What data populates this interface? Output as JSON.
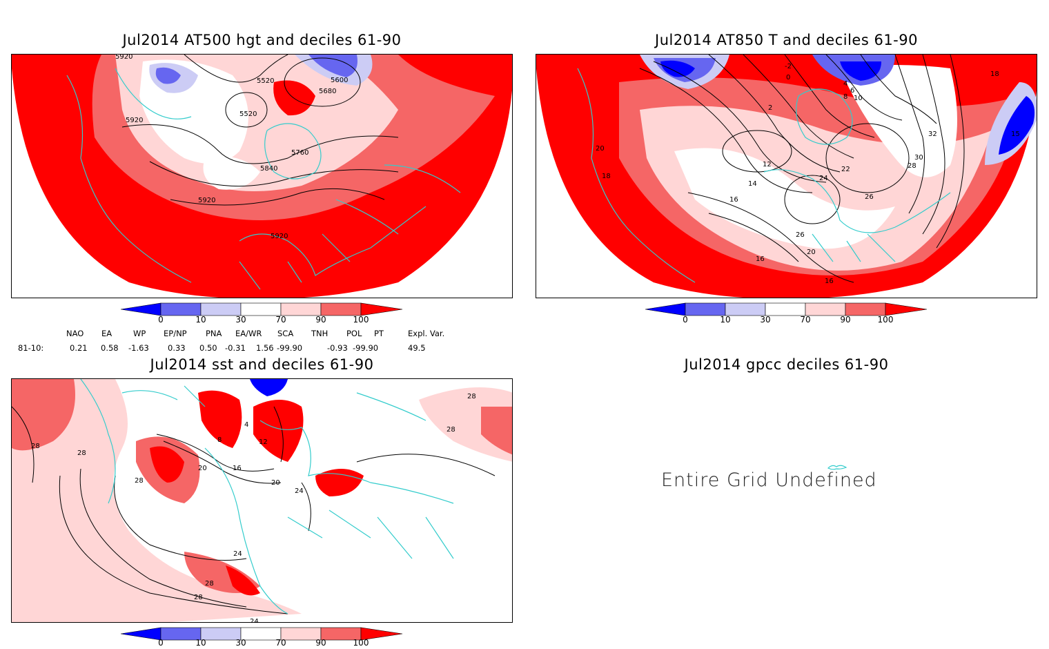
{
  "panels": {
    "p1": {
      "title": "Jul2014 AT500 hgt and deciles 61-90",
      "contour_labels": [
        "5520",
        "5520",
        "5600",
        "5680",
        "5760",
        "5840",
        "5920",
        "5920",
        "5920",
        "5920"
      ]
    },
    "p2": {
      "title": "Jul2014 AT850 T and deciles 61-90",
      "contour_labels": [
        "-2",
        "0",
        "2",
        "4",
        "6",
        "8",
        "10",
        "12",
        "14",
        "16",
        "16",
        "16",
        "18",
        "18",
        "20",
        "20",
        "22",
        "24",
        "26",
        "26",
        "28",
        "30",
        "32",
        "15"
      ]
    },
    "p3": {
      "title": "Jul2014 sst and deciles 61-90",
      "contour_labels": [
        "4",
        "8",
        "12",
        "16",
        "20",
        "20",
        "24",
        "24",
        "24",
        "28",
        "28",
        "28",
        "28",
        "28",
        "28",
        "28"
      ]
    },
    "p4": {
      "title": "Jul2014 gpcc deciles 61-90",
      "message": "Entire Grid Undefined"
    }
  },
  "colorbar": {
    "ticks": [
      "0",
      "10",
      "30",
      "70",
      "90",
      "100"
    ],
    "colors": [
      "#0000ff",
      "#6666f0",
      "#ccccf5",
      "#ffffff",
      "#ffd6d6",
      "#f56666",
      "#ff0000"
    ]
  },
  "indices": {
    "headers": [
      "NAO",
      "EA",
      "WP",
      "EP/NP",
      "PNA",
      "EA/WR",
      "SCA",
      "TNH",
      "POL",
      "PT",
      "Expl. Var."
    ],
    "row_label": "81-10:",
    "values": [
      "0.21",
      "0.58",
      "-1.63",
      "0.33",
      "0.50",
      "-0.31",
      "1.56",
      "-99.90",
      "-0.93",
      "-99.90",
      "49.5"
    ]
  },
  "colors": {
    "coast": "#33cccc",
    "strong_red": "#ff0000",
    "mid_red": "#f56666",
    "light_red": "#ffd6d6",
    "strong_blue": "#0000ff",
    "mid_blue": "#6666f0",
    "light_blue": "#ccccf5"
  }
}
